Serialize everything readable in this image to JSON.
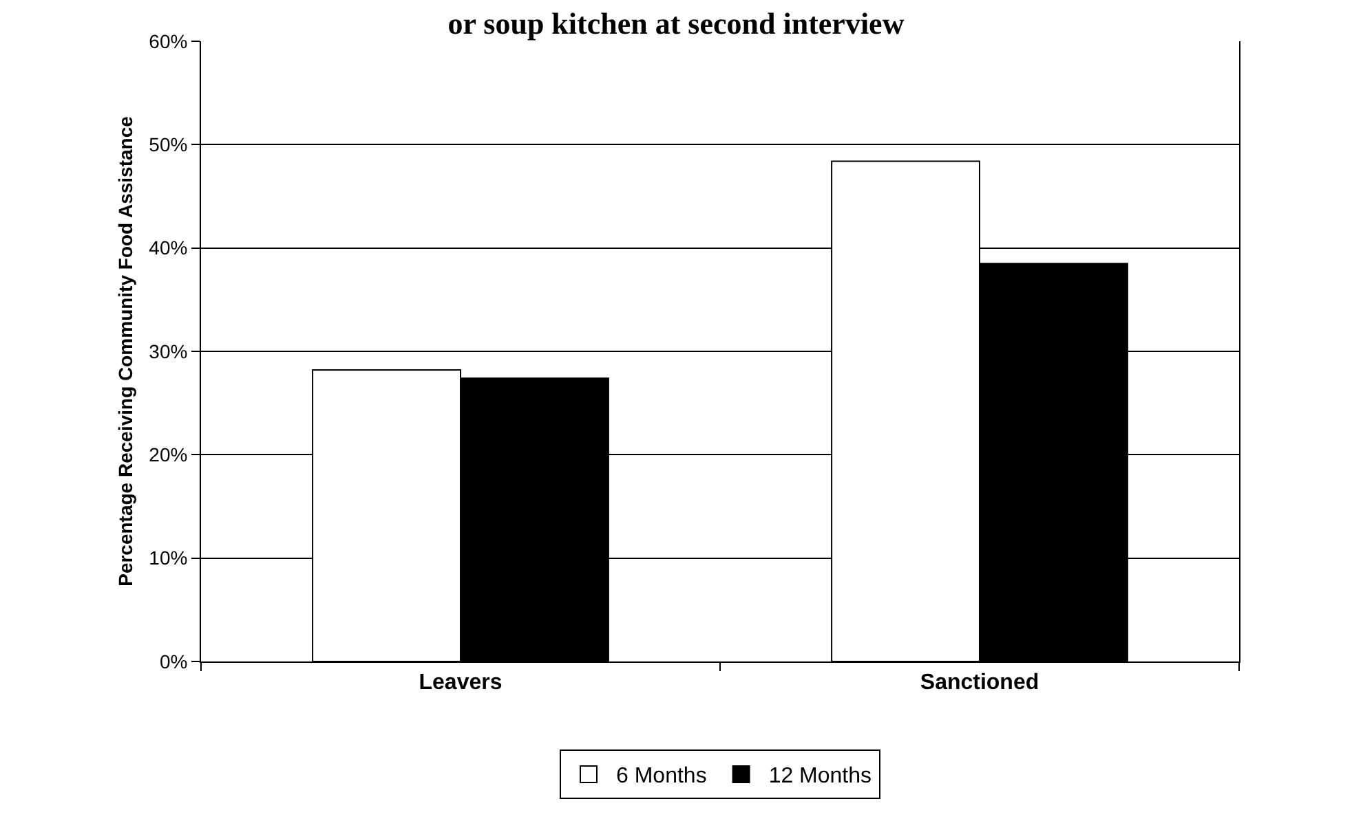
{
  "chart_data": {
    "type": "bar",
    "title": "or soup kitchen at second interview",
    "ylabel": "Percentage Receiving Community Food Assistance",
    "categories": [
      "Leavers",
      "Sanctioned"
    ],
    "series": [
      {
        "name": "6 Months",
        "color": "#ffffff",
        "values": [
          28.2,
          48.4
        ]
      },
      {
        "name": "12 Months",
        "color": "#000000",
        "values": [
          27.4,
          38.5
        ]
      }
    ],
    "ylim": [
      0,
      60
    ],
    "yticks": [
      {
        "value": 0,
        "label": "0%"
      },
      {
        "value": 10,
        "label": "10%"
      },
      {
        "value": 20,
        "label": "20%"
      },
      {
        "value": 30,
        "label": "30%"
      },
      {
        "value": 40,
        "label": "40%"
      },
      {
        "value": 50,
        "label": "50%"
      },
      {
        "value": 60,
        "label": "60%"
      }
    ],
    "grid": "y",
    "legend": "bottom"
  }
}
